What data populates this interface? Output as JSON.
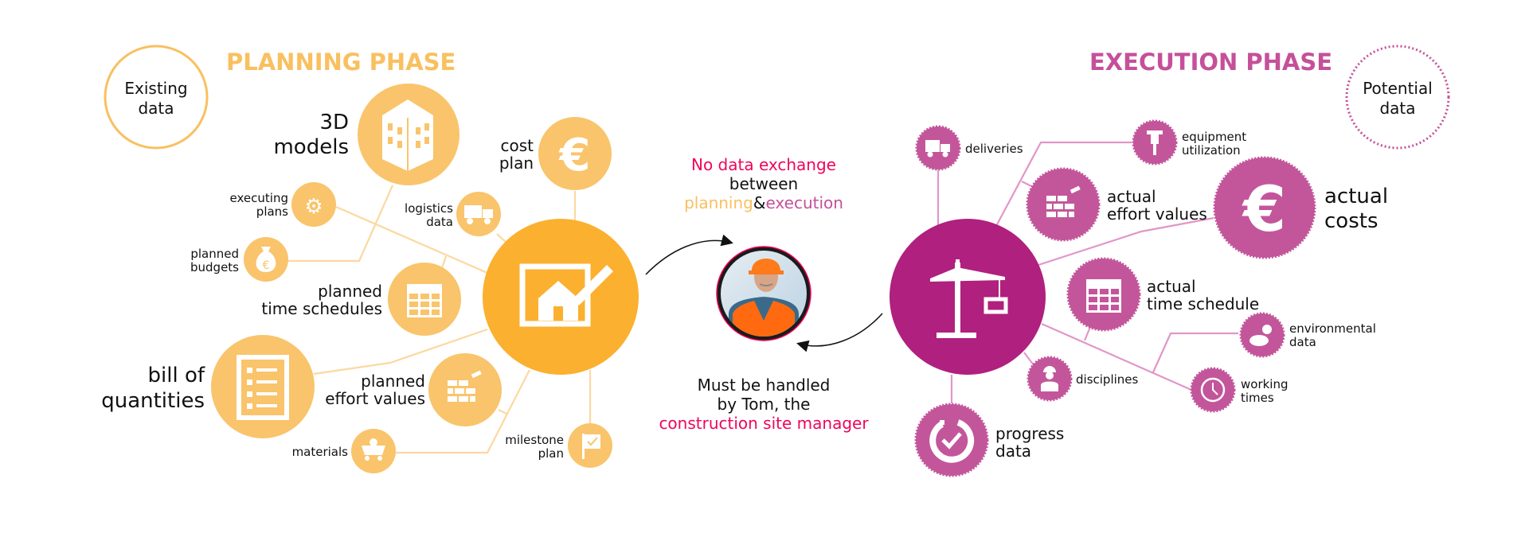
{
  "colors": {
    "planning_accent": "#f9c060",
    "planning_node": "#f9c46b",
    "planning_center": "#fbb030",
    "execution_accent": "#c5509a",
    "execution_node": "#c3569b",
    "execution_center": "#b0207e",
    "highlight": "#f0055a"
  },
  "legend": {
    "existing": [
      "Existing",
      "data"
    ],
    "potential": [
      "Potential",
      "data"
    ]
  },
  "planning": {
    "title": "PLANNING PHASE",
    "center_icon": "blueprint-house-pencil-icon",
    "nodes": {
      "models": {
        "label": [
          "3D",
          "models"
        ],
        "icon": "building-icon"
      },
      "cost_plan": {
        "label": [
          "cost",
          "plan"
        ],
        "icon": "euro-icon"
      },
      "executing_plans": {
        "label": [
          "executing",
          "plans"
        ],
        "icon": "gears-icon"
      },
      "logistics": {
        "label": [
          "logistics",
          "data"
        ],
        "icon": "truck-icon"
      },
      "budgets": {
        "label": [
          "planned",
          "budgets"
        ],
        "icon": "money-bag-icon"
      },
      "time_schedules": {
        "label": [
          "planned",
          "time schedules"
        ],
        "icon": "calendar-icon"
      },
      "bill": {
        "label": [
          "bill of",
          "quantities"
        ],
        "icon": "list-icon"
      },
      "effort": {
        "label": [
          "planned",
          "effort values"
        ],
        "icon": "bricks-icon"
      },
      "materials": {
        "label": [
          "materials"
        ],
        "icon": "mine-cart-icon"
      },
      "milestone": {
        "label": [
          "milestone",
          "plan"
        ],
        "icon": "flag-icon"
      }
    }
  },
  "middle": {
    "top": {
      "line1": "No data exchange",
      "line2": "between",
      "planning": "planning",
      "amp": "&",
      "execution": "execution"
    },
    "bottom": {
      "line1": "Must be handled",
      "line2": "by Tom, the",
      "line3": "construction site manager"
    }
  },
  "execution": {
    "title": "EXECUTION PHASE",
    "center_icon": "crane-icon",
    "nodes": {
      "deliveries": {
        "label": [
          "deliveries"
        ],
        "icon": "truck-icon"
      },
      "equipment": {
        "label": [
          "equipment",
          "utilization"
        ],
        "icon": "jackhammer-icon"
      },
      "effort": {
        "label": [
          "actual",
          "effort values"
        ],
        "icon": "bricks-icon"
      },
      "costs": {
        "label": [
          "actual",
          "costs"
        ],
        "icon": "euro-icon"
      },
      "time_schedule": {
        "label": [
          "actual",
          "time schedule"
        ],
        "icon": "calendar-icon"
      },
      "environmental": {
        "label": [
          "environmental",
          "data"
        ],
        "icon": "weather-icon"
      },
      "disciplines": {
        "label": [
          "disciplines"
        ],
        "icon": "worker-icon"
      },
      "working_times": {
        "label": [
          "working",
          "times"
        ],
        "icon": "clock-icon"
      },
      "progress": {
        "label": [
          "progress",
          "data"
        ],
        "icon": "progress-check-icon"
      }
    }
  }
}
